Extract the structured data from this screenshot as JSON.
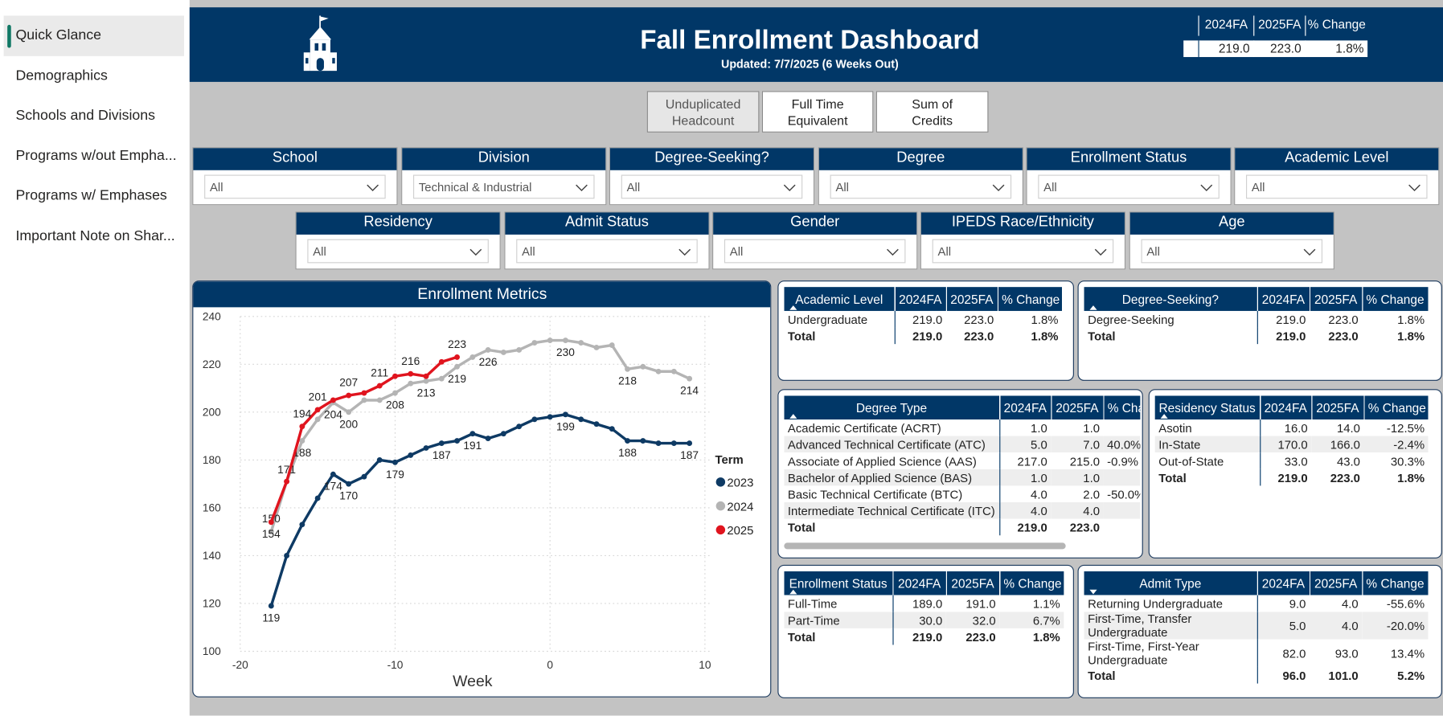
{
  "nav": [
    "Quick Glance",
    "Demographics",
    "Schools and Divisions",
    "Programs w/out Empha...",
    "Programs w/ Emphases",
    "Important Note on Shar..."
  ],
  "header": {
    "title": "Fall Enrollment Dashboard",
    "subtitle": "Updated: 7/7/2025 (6 Weeks Out)"
  },
  "summary": {
    "columns": [
      "2024FA",
      "2025FA",
      "% Change"
    ],
    "row": [
      "219.0",
      "223.0",
      "1.8%"
    ]
  },
  "buttons": [
    "Unduplicated Headcount",
    "Full Time Equivalent",
    "Sum of Credits"
  ],
  "filters": [
    {
      "label": "School",
      "value": "All"
    },
    {
      "label": "Division",
      "value": "Technical & Industrial"
    },
    {
      "label": "Degree-Seeking?",
      "value": "All"
    },
    {
      "label": "Degree",
      "value": "All"
    },
    {
      "label": "Enrollment Status",
      "value": "All"
    },
    {
      "label": "Academic Level",
      "value": "All"
    },
    {
      "label": "Residency",
      "value": "All"
    },
    {
      "label": "Admit Status",
      "value": "All"
    },
    {
      "label": "Gender",
      "value": "All"
    },
    {
      "label": "IPEDS Race/Ethnicity",
      "value": "All"
    },
    {
      "label": "Age",
      "value": "All"
    }
  ],
  "chart_data": {
    "type": "line",
    "title": "Enrollment Metrics",
    "x_label": "Week",
    "legend_title": "Term",
    "x": [
      -18,
      -17,
      -16,
      -15,
      -14,
      -13,
      -12,
      -11,
      -10,
      -9,
      -8,
      -7,
      -6,
      -5,
      -4,
      -3,
      -2,
      -1,
      0,
      1,
      2,
      3,
      4,
      5,
      6,
      7,
      8,
      9
    ],
    "series": [
      {
        "name": "2023",
        "color": "#0e3a64",
        "values": [
          119,
          140,
          153,
          164,
          174,
          170,
          173,
          180,
          179,
          182,
          185,
          187,
          188,
          191,
          189,
          191,
          194,
          197,
          198,
          199,
          197,
          195,
          193,
          188,
          188,
          187,
          187,
          187
        ]
      },
      {
        "name": "2024",
        "color": "#b4b4b4",
        "values": [
          150,
          171,
          188,
          197,
          204,
          200,
          205,
          205,
          208,
          212,
          213,
          214,
          219,
          223,
          226,
          225,
          226,
          229,
          230,
          230,
          229,
          227,
          228,
          218,
          219,
          217,
          217,
          214
        ]
      },
      {
        "name": "2025",
        "color": "#e0141e",
        "values": [
          154,
          171,
          194,
          201,
          205,
          207,
          208,
          211,
          215,
          216,
          215,
          221,
          223,
          null,
          null,
          null,
          null,
          null,
          null,
          null,
          null,
          null,
          null,
          null,
          null,
          null,
          null,
          null
        ]
      }
    ],
    "xlim": [
      -20,
      10
    ],
    "xticks": [
      -20,
      -10,
      0,
      10
    ],
    "ylim": [
      100,
      240
    ],
    "yticks": [
      100,
      120,
      140,
      160,
      180,
      200,
      220,
      240
    ],
    "grid": true,
    "legend": "right"
  },
  "tables": [
    {
      "columns": [
        "Academic Level",
        "2024FA",
        "2025FA",
        "% Change"
      ],
      "rows": [
        [
          "Undergraduate",
          "219.0",
          "223.0",
          "1.8%"
        ]
      ],
      "total": [
        "Total",
        "219.0",
        "223.0",
        "1.8%"
      ]
    },
    {
      "columns": [
        "Degree-Seeking?",
        "2024FA",
        "2025FA",
        "% Change"
      ],
      "rows": [
        [
          "Degree-Seeking",
          "219.0",
          "223.0",
          "1.8%"
        ]
      ],
      "total": [
        "Total",
        "219.0",
        "223.0",
        "1.8%"
      ]
    },
    {
      "columns": [
        "Degree Type",
        "2024FA",
        "2025FA",
        "% Change"
      ],
      "rows": [
        [
          "Academic Certificate (ACRT)",
          "1.0",
          "1.0"
        ],
        [
          "Advanced Technical Certificate (ATC)",
          "5.0",
          "7.0",
          "40.0%"
        ],
        [
          "Associate of Applied Science (AAS)",
          "217.0",
          "215.0",
          "-0.9%"
        ],
        [
          "Bachelor of Applied Science (BAS)",
          "1.0",
          "1.0"
        ],
        [
          "Basic Technical Certificate (BTC)",
          "4.0",
          "2.0",
          "-50.0%"
        ],
        [
          "Intermediate Technical Certificate (ITC)",
          "4.0",
          "4.0"
        ]
      ],
      "total": [
        "Total",
        "219.0",
        "223.0"
      ]
    },
    {
      "columns": [
        "Residency Status",
        "2024FA",
        "2025FA",
        "% Change"
      ],
      "rows": [
        [
          "Asotin",
          "16.0",
          "14.0",
          "-12.5%"
        ],
        [
          "In-State",
          "170.0",
          "166.0",
          "-2.4%"
        ],
        [
          "Out-of-State",
          "33.0",
          "43.0",
          "30.3%"
        ]
      ],
      "total": [
        "Total",
        "219.0",
        "223.0",
        "1.8%"
      ]
    },
    {
      "columns": [
        "Enrollment Status",
        "2024FA",
        "2025FA",
        "% Change"
      ],
      "rows": [
        [
          "Full-Time",
          "189.0",
          "191.0",
          "1.1%"
        ],
        [
          "Part-Time",
          "30.0",
          "32.0",
          "6.7%"
        ]
      ],
      "total": [
        "Total",
        "219.0",
        "223.0",
        "1.8%"
      ]
    },
    {
      "columns": [
        "Admit Type",
        "2024FA",
        "2025FA",
        "% Change"
      ],
      "rows": [
        [
          "Returning Undergraduate",
          "9.0",
          "4.0",
          "-55.6%"
        ],
        [
          "First-Time, Transfer Undergraduate",
          "5.0",
          "4.0",
          "-20.0%"
        ],
        [
          "First-Time, First-Year Undergraduate",
          "82.0",
          "93.0",
          "13.4%"
        ]
      ],
      "total": [
        "Total",
        "96.0",
        "101.0",
        "5.2%"
      ]
    }
  ]
}
